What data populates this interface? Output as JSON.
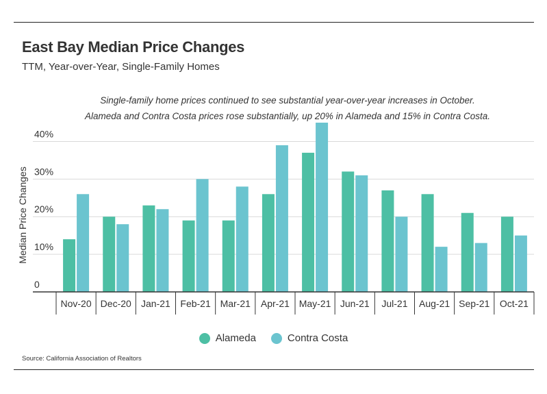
{
  "header": {
    "title": "East Bay Median Price Changes",
    "subtitle": "TTM, Year-over-Year, Single-Family Homes"
  },
  "annotation": "Single-family home prices continued to see substantial year-over-year increases in October. Alameda and Contra Costa prices rose substantially, up 20% in Alameda and 15% in Contra Costa.",
  "source": "Source:  California Association of Realtors",
  "colors": {
    "alameda": "#4dbfa4",
    "contra_costa": "#6bc4cf",
    "grid": "#d9d9d9",
    "axis": "#333333"
  },
  "chart_data": {
    "type": "bar",
    "categories": [
      "Nov-20",
      "Dec-20",
      "Jan-21",
      "Feb-21",
      "Mar-21",
      "Apr-21",
      "May-21",
      "Jun-21",
      "Jul-21",
      "Aug-21",
      "Sep-21",
      "Oct-21"
    ],
    "series": [
      {
        "name": "Alameda",
        "values": [
          14,
          20,
          23,
          19,
          19,
          26,
          37,
          32,
          27,
          26,
          21,
          20
        ]
      },
      {
        "name": "Contra Costa",
        "values": [
          26,
          18,
          22,
          30,
          28,
          39,
          45,
          31,
          20,
          12,
          13,
          15
        ]
      }
    ],
    "ylabel": "Median Price Changes",
    "yticks": [
      "0",
      "10%",
      "20%",
      "30%",
      "40%"
    ],
    "ytick_values": [
      0,
      10,
      20,
      30,
      40
    ],
    "ylim": [
      0,
      45
    ],
    "grid": true,
    "legend_position": "bottom"
  }
}
